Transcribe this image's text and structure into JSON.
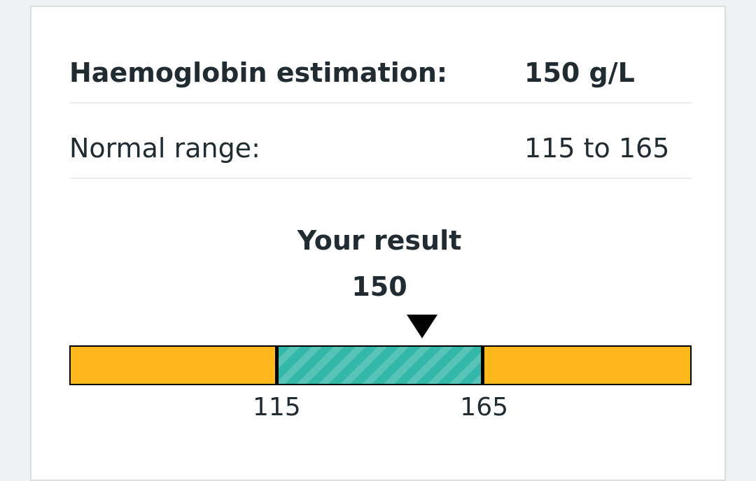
{
  "result_card": {
    "haemoglobin": {
      "label": "Haemoglobin estimation:",
      "value": "150 g/L"
    },
    "normal_range": {
      "label": "Normal range:",
      "value": "115 to 165"
    },
    "result": {
      "heading": "Your result",
      "value": "150"
    },
    "range_bar": {
      "scale_min": 65,
      "scale_max": 215,
      "normal_low": 115,
      "normal_high": 165,
      "result": 150,
      "low_label": "115",
      "high_label": "165",
      "colors": {
        "out_of_range": "#ffb81c",
        "in_range": "#33b7a8",
        "marker": "#000000"
      }
    }
  }
}
